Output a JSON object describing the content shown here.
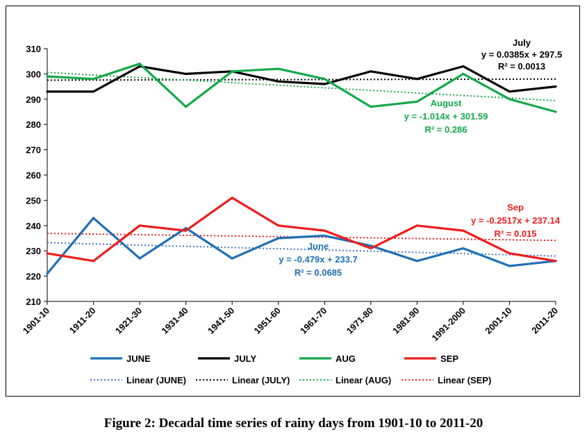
{
  "caption": "Figure 2: Decadal time series of rainy days from 1901-10 to 2011-20",
  "chart_data": {
    "type": "line",
    "categories": [
      "1901-10",
      "1911-20",
      "1921-30",
      "1931-40",
      "1941-50",
      "1951-60",
      "1961-70",
      "1971-80",
      "1981-90",
      "1991-2000",
      "2001-10",
      "2011-20"
    ],
    "ylim": [
      210,
      310
    ],
    "yticks": [
      210,
      220,
      230,
      240,
      250,
      260,
      270,
      280,
      290,
      300,
      310
    ],
    "grid": false,
    "legend_position": "bottom",
    "series": [
      {
        "name": "JUNE",
        "color": "#1f6fb4",
        "values": [
          221,
          243,
          227,
          239,
          227,
          235,
          236,
          232,
          226,
          231,
          224,
          226
        ]
      },
      {
        "name": "JULY",
        "color": "#000000",
        "values": [
          293,
          293,
          303,
          300,
          301,
          297,
          296,
          301,
          298,
          303,
          293,
          295
        ]
      },
      {
        "name": "AUG",
        "color": "#16a84a",
        "values": [
          299,
          298,
          304,
          287,
          301,
          302,
          298,
          287,
          289,
          300,
          290,
          285
        ]
      },
      {
        "name": "SEP",
        "color": "#ee1c1c",
        "values": [
          229,
          226,
          240,
          238,
          251,
          240,
          238,
          231,
          240,
          238,
          229,
          226
        ]
      }
    ],
    "trendlines": [
      {
        "name": "Linear (JUNE)",
        "color": "#4472c4",
        "slope": -0.479,
        "intercept": 233.7
      },
      {
        "name": "Linear (JULY)",
        "color": "#000000",
        "slope": 0.0385,
        "intercept": 297.5
      },
      {
        "name": "Linear (AUG)",
        "color": "#16a84a",
        "slope": -1.014,
        "intercept": 301.59
      },
      {
        "name": "Linear (SEP)",
        "color": "#ee1c1c",
        "slope": -0.2517,
        "intercept": 237.14
      }
    ],
    "annotations": [
      {
        "id": "july",
        "color": "#000000",
        "lines": [
          "July",
          "y = 0.0385x + 297.5",
          "R² = 0.0013"
        ]
      },
      {
        "id": "aug",
        "color": "#16a84a",
        "lines": [
          "August",
          "y = -1.014x + 301.59",
          "R² = 0.286"
        ]
      },
      {
        "id": "sep",
        "color": "#ee1c1c",
        "lines": [
          "Sep",
          "y = -0.2517x + 237.14",
          "R² = 0.015"
        ]
      },
      {
        "id": "june",
        "color": "#1f6fb4",
        "lines": [
          "June",
          "y = -0.479x + 233.7",
          "R² = 0.0685"
        ]
      }
    ]
  }
}
